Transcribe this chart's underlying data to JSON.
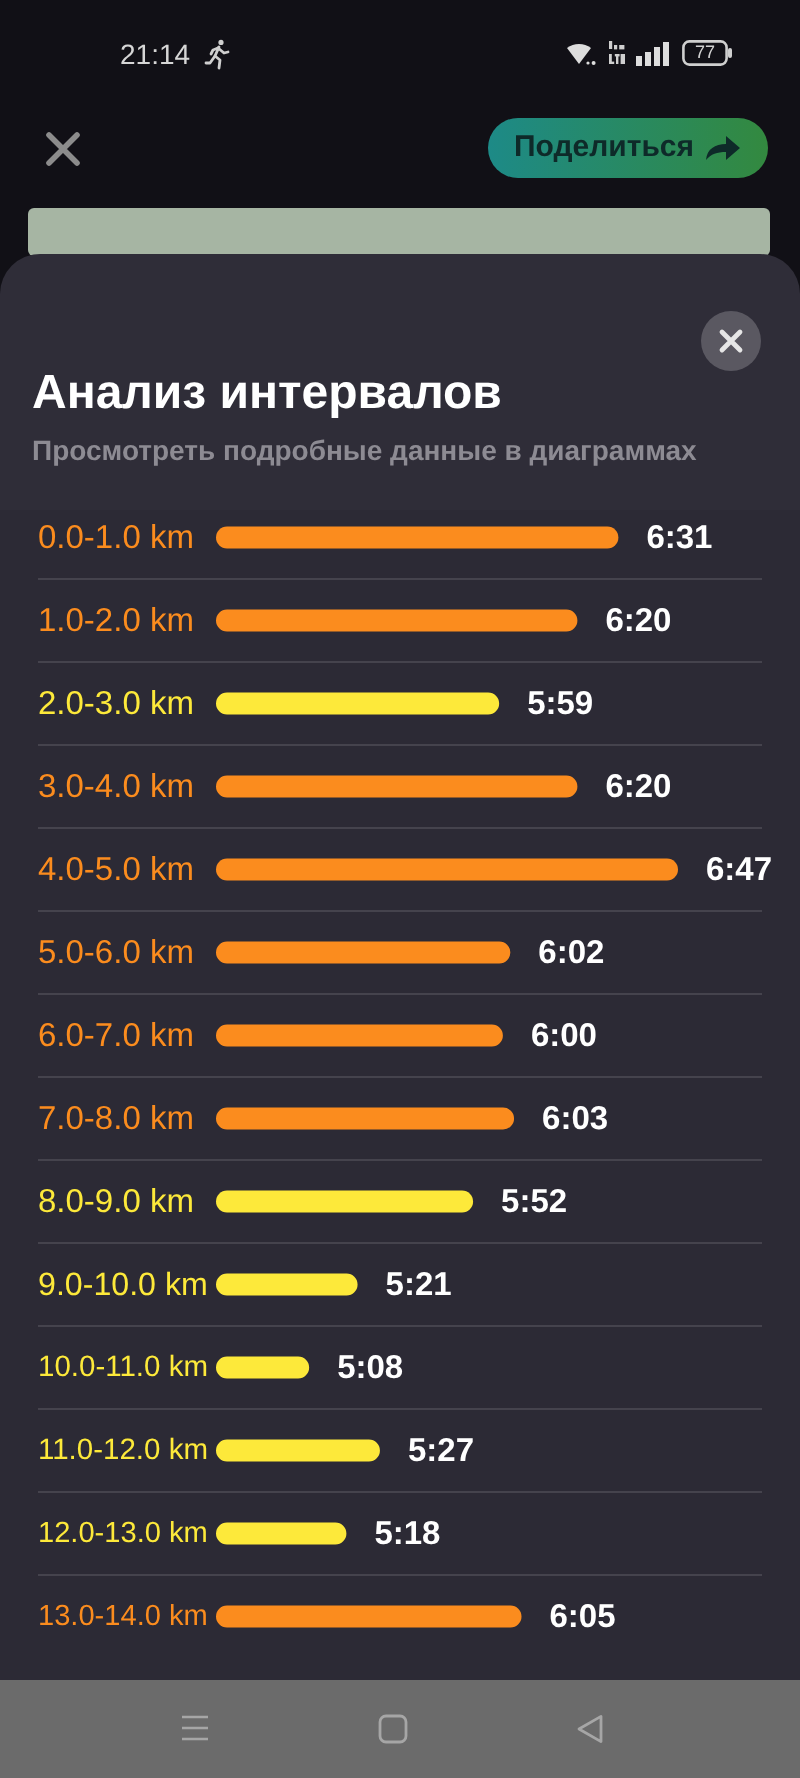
{
  "chart_data": {
    "type": "bar",
    "orientation": "horizontal",
    "title": "Анализ интервалов",
    "subtitle": "Просмотреть подробные данные в диаграммах",
    "categories": [
      "0.0-1.0 km",
      "1.0-2.0 km",
      "2.0-3.0 km",
      "3.0-4.0 km",
      "4.0-5.0 km",
      "5.0-6.0 km",
      "6.0-7.0 km",
      "7.0-8.0 km",
      "8.0-9.0 km",
      "9.0-10.0 km",
      "10.0-11.0 km",
      "11.0-12.0 km",
      "12.0-13.0 km",
      "13.0-14.0 km"
    ],
    "values": [
      391,
      380,
      359,
      380,
      407,
      362,
      360,
      363,
      352,
      321,
      308,
      327,
      318,
      365
    ],
    "value_labels": [
      "6:31",
      "6:20",
      "5:59",
      "6:20",
      "6:47",
      "6:02",
      "6:00",
      "6:03",
      "5:52",
      "5:21",
      "5:08",
      "5:27",
      "5:18",
      "6:05"
    ],
    "colors": [
      "#fb8c1e",
      "#fb8c1e",
      "#fde93a",
      "#fb8c1e",
      "#fb8c1e",
      "#fb8c1e",
      "#fb8c1e",
      "#fb8c1e",
      "#fde93a",
      "#fde93a",
      "#fde93a",
      "#fde93a",
      "#fde93a",
      "#fb8c1e"
    ],
    "xlim": [
      283,
      407
    ],
    "tick_labels": "y",
    "grid": "y",
    "annotations": [
      "21:14",
      "77",
      "Поделиться"
    ]
  }
}
